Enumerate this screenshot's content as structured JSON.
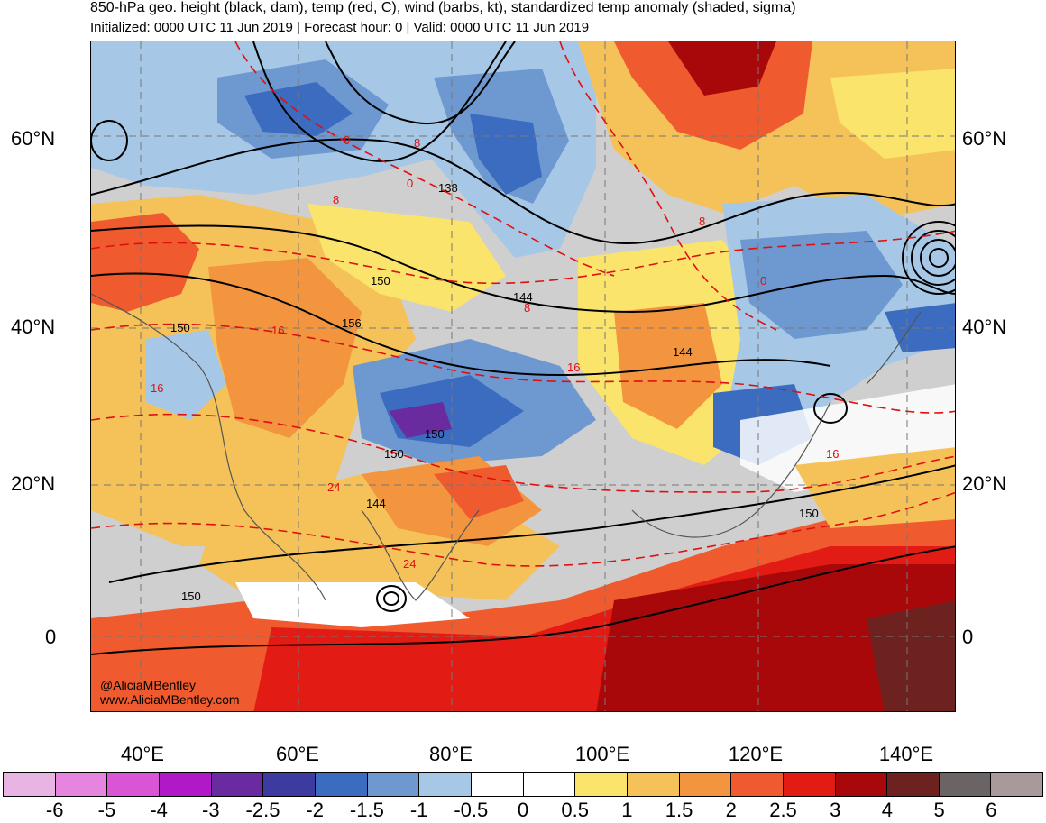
{
  "title": "850-hPa geo. height (black, dam), temp (red, C), wind (barbs, kt), standardized temp anomaly (shaded, sigma)",
  "subtitle": "Initialized: 0000 UTC 11 Jun 2019 | Forecast hour: 0 | Valid: 0000 UTC 11 Jun 2019",
  "lat_labels": [
    "60°N",
    "40°N",
    "20°N",
    "0"
  ],
  "lon_labels": [
    "40°E",
    "60°E",
    "80°E",
    "100°E",
    "120°E",
    "140°E"
  ],
  "credits": [
    "@AliciaMBentley",
    "www.AliciaMBentley.com"
  ],
  "contour_labels": {
    "height": [
      "138",
      "150",
      "144",
      "156",
      "150",
      "150",
      "150",
      "144",
      "150",
      "150",
      "150",
      "144"
    ],
    "temp": [
      "0",
      "0",
      "8",
      "8",
      "0",
      "8",
      "16",
      "16",
      "8",
      "16",
      "24",
      "24",
      "0",
      "8",
      "0",
      "16"
    ]
  },
  "colorbar": {
    "labels": [
      "-6",
      "-5",
      "-4",
      "-3",
      "-2.5",
      "-2",
      "-1.5",
      "-1",
      "-0.5",
      "0",
      "0.5",
      "1",
      "1.5",
      "2",
      "2.5",
      "3",
      "4",
      "5",
      "6"
    ],
    "colors": [
      "#e8b4e4",
      "#e585e0",
      "#d955d6",
      "#b018c8",
      "#6a2aa0",
      "#3d3aa0",
      "#3c6cc0",
      "#6e98d0",
      "#a6c8e6",
      "#ffffff",
      "#ffffff",
      "#fbe46c",
      "#f5c25a",
      "#f2953e",
      "#ef5a2e",
      "#e21b14",
      "#a8080a",
      "#6e2220",
      "#6a6464",
      "#a89a9a"
    ]
  }
}
